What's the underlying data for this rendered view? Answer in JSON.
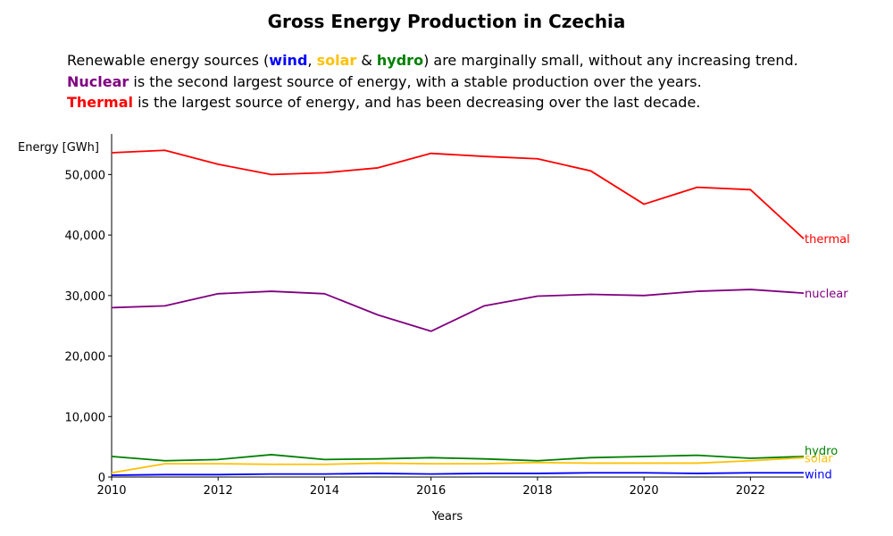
{
  "subtitle": {
    "line1": {
      "pre": "Renewable energy sources (",
      "wind": "wind",
      "sep1": ", ",
      "solar": "solar",
      "sep2": " & ",
      "hydro": "hydro",
      "post": ") are marginally small, without any increasing trend."
    },
    "line2": {
      "nuclear": "Nuclear",
      "post": " is the second largest source of energy, with a stable production over the years."
    },
    "line3": {
      "thermal": "Thermal",
      "post": " is the largest source of energy, and has been decreasing over the last decade."
    }
  },
  "chart_data": {
    "type": "line",
    "title": "Gross Energy Production in Czechia",
    "xlabel": "Years",
    "ylabel": "Energy [GWh]",
    "xlim": [
      2010,
      2023
    ],
    "ylim": [
      0,
      56700
    ],
    "x_ticks": [
      2010,
      2012,
      2014,
      2016,
      2018,
      2020,
      2022
    ],
    "y_ticks": [
      0,
      10000,
      20000,
      30000,
      40000,
      50000
    ],
    "y_tick_labels": [
      "0",
      "10,000",
      "20,000",
      "30,000",
      "40,000",
      "50,000"
    ],
    "grid": false,
    "legend": "none",
    "x": [
      2010,
      2011,
      2012,
      2013,
      2014,
      2015,
      2016,
      2017,
      2018,
      2019,
      2020,
      2021,
      2022,
      2023
    ],
    "series": [
      {
        "name": "thermal",
        "color": "#ff0000",
        "values": [
          53600,
          54000,
          51700,
          50000,
          50300,
          51100,
          53500,
          53000,
          52600,
          50600,
          45100,
          47900,
          47500,
          39400
        ]
      },
      {
        "name": "nuclear",
        "color": "#800080",
        "values": [
          28000,
          28300,
          30300,
          30700,
          30300,
          26800,
          24100,
          28300,
          29900,
          30200,
          30000,
          30700,
          31000,
          30400
        ]
      },
      {
        "name": "hydro",
        "color": "#008000",
        "values": [
          3400,
          2700,
          2900,
          3700,
          2900,
          3000,
          3200,
          3000,
          2700,
          3200,
          3400,
          3600,
          3100,
          3400
        ]
      },
      {
        "name": "solar",
        "color": "#ffc107",
        "values": [
          700,
          2200,
          2200,
          2100,
          2100,
          2300,
          2200,
          2200,
          2400,
          2300,
          2300,
          2300,
          2700,
          3200
        ]
      },
      {
        "name": "wind",
        "color": "#0000ff",
        "values": [
          300,
          400,
          400,
          500,
          500,
          600,
          500,
          600,
          600,
          700,
          700,
          600,
          700,
          700
        ]
      }
    ]
  }
}
